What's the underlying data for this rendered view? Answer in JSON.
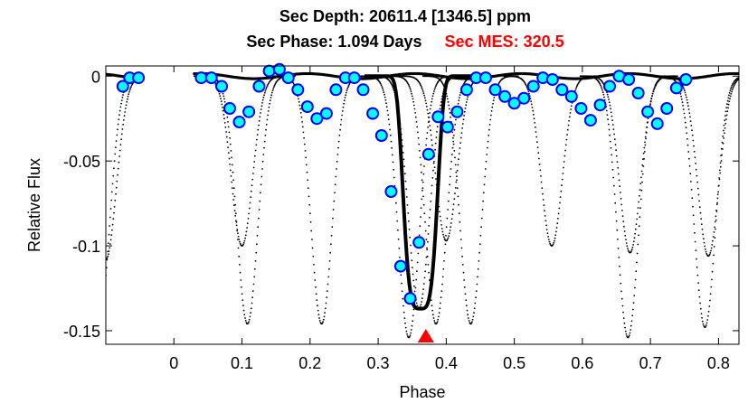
{
  "title_line1": "Sec Depth: 20611.4 [1346.5] ppm",
  "title_line2_black": "Sec Phase: 1.094 Days",
  "title_line2_red": "Sec MES: 320.5",
  "colors": {
    "data": "#000000",
    "binned_fill": "#00ffff",
    "binned_edge": "#0000ff",
    "marker": "#ff0000",
    "mes_text": "#ff0000"
  },
  "chart_data": {
    "type": "scatter",
    "xlabel": "Phase",
    "ylabel": "Relative Flux",
    "xlim": [
      -0.1,
      0.83
    ],
    "ylim": [
      -0.158,
      0.006
    ],
    "xticks": [
      "0",
      "0.1",
      "0.2",
      "0.3",
      "0.4",
      "0.5",
      "0.6",
      "0.7",
      "0.8"
    ],
    "yticks": [
      "0",
      "-0.05",
      "-0.1",
      "-0.15"
    ],
    "grid": false,
    "secondary_eclipse_phase_marker": 0.37,
    "raw_dip_centers": [
      {
        "phase": -0.11,
        "depth": -0.145
      },
      {
        "phase": 0.108,
        "depth": -0.146
      },
      {
        "phase": 0.217,
        "depth": -0.146
      },
      {
        "phase": 0.436,
        "depth": -0.146
      },
      {
        "phase": 0.667,
        "depth": -0.154
      },
      {
        "phase": 0.78,
        "depth": -0.148
      },
      {
        "phase": 0.1,
        "depth": -0.1
      },
      {
        "phase": 0.555,
        "depth": -0.1
      },
      {
        "phase": 0.67,
        "depth": -0.104
      },
      {
        "phase": 0.785,
        "depth": -0.106
      },
      {
        "phase": -0.1,
        "depth": -0.108
      },
      {
        "phase": 0.345,
        "depth": -0.154
      },
      {
        "phase": 0.36,
        "depth": -0.137
      },
      {
        "phase": 0.385,
        "depth": -0.146
      },
      {
        "phase": 0.4,
        "depth": -0.097
      }
    ],
    "binned_points": [
      [
        -0.075,
        -0.006
      ],
      [
        -0.065,
        -0.001
      ],
      [
        -0.052,
        -0.001
      ],
      [
        0.04,
        -0.001
      ],
      [
        0.055,
        -0.001
      ],
      [
        0.07,
        -0.006
      ],
      [
        0.082,
        -0.019
      ],
      [
        0.096,
        -0.027
      ],
      [
        0.11,
        -0.021
      ],
      [
        0.125,
        -0.006
      ],
      [
        0.14,
        0.003
      ],
      [
        0.155,
        0.004
      ],
      [
        0.168,
        -0.001
      ],
      [
        0.182,
        -0.008
      ],
      [
        0.196,
        -0.018
      ],
      [
        0.21,
        -0.025
      ],
      [
        0.224,
        -0.022
      ],
      [
        0.238,
        -0.008
      ],
      [
        0.252,
        -0.001
      ],
      [
        0.265,
        -0.001
      ],
      [
        0.278,
        -0.008
      ],
      [
        0.292,
        -0.022
      ],
      [
        0.305,
        -0.035
      ],
      [
        0.319,
        -0.068
      ],
      [
        0.333,
        -0.112
      ],
      [
        0.347,
        -0.131
      ],
      [
        0.36,
        -0.098
      ],
      [
        0.374,
        -0.046
      ],
      [
        0.388,
        -0.024
      ],
      [
        0.402,
        -0.03
      ],
      [
        0.416,
        -0.021
      ],
      [
        0.43,
        -0.008
      ],
      [
        0.444,
        -0.001
      ],
      [
        0.458,
        -0.001
      ],
      [
        0.472,
        -0.008
      ],
      [
        0.486,
        -0.012
      ],
      [
        0.5,
        -0.016
      ],
      [
        0.514,
        -0.013
      ],
      [
        0.528,
        -0.006
      ],
      [
        0.542,
        -0.001
      ],
      [
        0.556,
        -0.002
      ],
      [
        0.57,
        -0.008
      ],
      [
        0.584,
        -0.012
      ],
      [
        0.598,
        -0.019
      ],
      [
        0.612,
        -0.026
      ],
      [
        0.626,
        -0.017
      ],
      [
        0.64,
        -0.006
      ],
      [
        0.654,
        0.0
      ],
      [
        0.668,
        -0.002
      ],
      [
        0.682,
        -0.01
      ],
      [
        0.696,
        -0.021
      ],
      [
        0.71,
        -0.028
      ],
      [
        0.724,
        -0.019
      ],
      [
        0.738,
        -0.007
      ],
      [
        0.752,
        -0.002
      ]
    ]
  }
}
